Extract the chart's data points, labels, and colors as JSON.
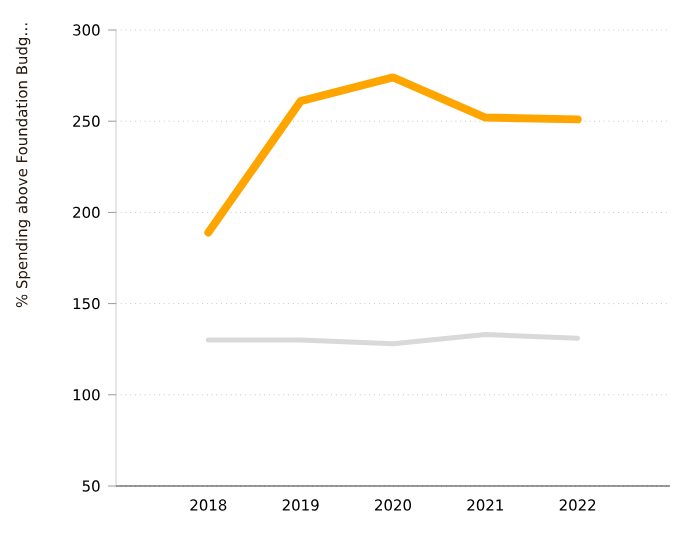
{
  "chart_data": {
    "type": "line",
    "ylabel": "% Spending above Foundation Budg…",
    "categories": [
      "2018",
      "2019",
      "2020",
      "2021",
      "2022"
    ],
    "series": [
      {
        "color": "#ffa500",
        "values": [
          189,
          261,
          274,
          252,
          251
        ]
      },
      {
        "color": "#d9d9d9",
        "values": [
          130,
          130,
          128,
          133,
          131
        ]
      }
    ],
    "ylim": [
      50,
      300
    ],
    "yticks": [
      50,
      100,
      150,
      200,
      250,
      300
    ],
    "grid": "y",
    "marker": "none",
    "line_style": "solid"
  }
}
